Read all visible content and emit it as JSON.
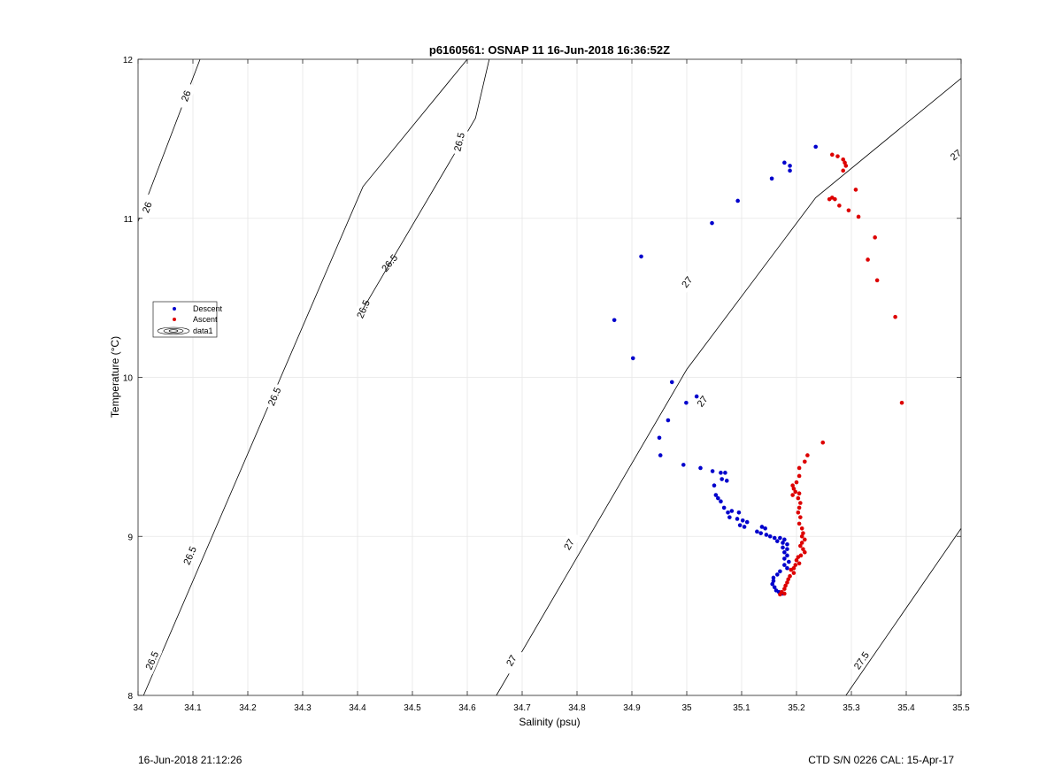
{
  "footer": {
    "left": "16-Jun-2018 21:12:26",
    "right": "CTD S/N 0226  CAL: 15-Apr-17"
  },
  "chart_data": {
    "type": "scatter",
    "title": "p6160561: OSNAP 11 16-Jun-2018 16:36:52Z",
    "xlabel": "Salinity (psu)",
    "ylabel": "Temperature (°C)",
    "xlim": [
      34,
      35.5
    ],
    "ylim": [
      8,
      12
    ],
    "xticks": [
      34,
      34.1,
      34.2,
      34.3,
      34.4,
      34.5,
      34.6,
      34.7,
      34.8,
      34.9,
      35,
      35.1,
      35.2,
      35.3,
      35.4,
      35.5
    ],
    "xtick_labels": [
      "34",
      "34.1",
      "34.2",
      "34.3",
      "34.4",
      "34.5",
      "34.6",
      "34.7",
      "34.8",
      "34.9",
      "35",
      "35.1",
      "35.2",
      "35.3",
      "35.4",
      "35.5"
    ],
    "yticks": [
      8,
      9,
      10,
      11,
      12
    ],
    "ytick_labels": [
      "8",
      "9",
      "10",
      "11",
      "12"
    ],
    "grid": true,
    "legend": {
      "placement": "left",
      "entries": [
        {
          "label": "Descent",
          "color": "#0000cc",
          "marker": "dot"
        },
        {
          "label": "Ascent",
          "color": "#dd0000",
          "marker": "dot"
        },
        {
          "label": "data1",
          "marker": "contour"
        }
      ]
    },
    "contours": [
      {
        "label": "26",
        "points": [
          [
            34.0,
            10.98
          ],
          [
            34.113,
            12.0
          ]
        ],
        "label_positions": [
          [
            34.016,
            11.07
          ],
          [
            34.087,
            11.77
          ]
        ]
      },
      {
        "label": "26.5",
        "points": [
          [
            34.01,
            8.0
          ],
          [
            34.41,
            11.2
          ],
          [
            34.6,
            12.0
          ]
        ],
        "label_positions": [
          [
            34.025,
            8.22
          ],
          [
            34.094,
            8.88
          ],
          [
            34.248,
            9.88
          ],
          [
            34.41,
            10.43
          ],
          [
            34.458,
            10.72
          ]
        ]
      },
      {
        "label": "26.5",
        "points": [
          [
            34.41,
            10.43
          ],
          [
            34.615,
            11.63
          ],
          [
            34.64,
            12.0
          ]
        ],
        "label_positions": [
          [
            34.585,
            11.48
          ]
        ]
      },
      {
        "label": "27",
        "points": [
          [
            34.653,
            8.0
          ],
          [
            35.0,
            10.05
          ],
          [
            35.235,
            11.13
          ],
          [
            35.5,
            11.88
          ]
        ],
        "label_positions": [
          [
            34.68,
            8.22
          ],
          [
            34.785,
            8.95
          ],
          [
            35.028,
            9.85
          ],
          [
            35.0,
            10.6
          ],
          [
            35.49,
            11.4
          ]
        ]
      },
      {
        "label": "27.5",
        "points": [
          [
            35.29,
            8.0
          ],
          [
            35.5,
            9.05
          ]
        ],
        "label_positions": [
          [
            35.318,
            8.22
          ]
        ]
      }
    ],
    "series": [
      {
        "name": "Descent",
        "color": "#0000cc",
        "points": [
          [
            35.235,
            11.45
          ],
          [
            35.178,
            11.35
          ],
          [
            35.188,
            11.33
          ],
          [
            35.188,
            11.3
          ],
          [
            35.155,
            11.25
          ],
          [
            35.093,
            11.11
          ],
          [
            35.046,
            10.97
          ],
          [
            34.917,
            10.76
          ],
          [
            34.868,
            10.36
          ],
          [
            34.902,
            10.12
          ],
          [
            34.973,
            9.97
          ],
          [
            35.018,
            9.88
          ],
          [
            34.999,
            9.84
          ],
          [
            34.966,
            9.73
          ],
          [
            34.95,
            9.62
          ],
          [
            34.952,
            9.51
          ],
          [
            34.994,
            9.45
          ],
          [
            35.025,
            9.43
          ],
          [
            35.047,
            9.41
          ],
          [
            35.062,
            9.4
          ],
          [
            35.07,
            9.4
          ],
          [
            35.064,
            9.36
          ],
          [
            35.073,
            9.35
          ],
          [
            35.05,
            9.32
          ],
          [
            35.053,
            9.26
          ],
          [
            35.057,
            9.24
          ],
          [
            35.062,
            9.22
          ],
          [
            35.068,
            9.18
          ],
          [
            35.075,
            9.15
          ],
          [
            35.082,
            9.16
          ],
          [
            35.095,
            9.15
          ],
          [
            35.078,
            9.12
          ],
          [
            35.092,
            9.11
          ],
          [
            35.102,
            9.1
          ],
          [
            35.11,
            9.09
          ],
          [
            35.097,
            9.07
          ],
          [
            35.105,
            9.06
          ],
          [
            35.137,
            9.06
          ],
          [
            35.143,
            9.05
          ],
          [
            35.128,
            9.03
          ],
          [
            35.135,
            9.02
          ],
          [
            35.145,
            9.01
          ],
          [
            35.152,
            9.0
          ],
          [
            35.16,
            8.99
          ],
          [
            35.17,
            8.99
          ],
          [
            35.178,
            8.98
          ],
          [
            35.165,
            8.97
          ],
          [
            35.175,
            8.96
          ],
          [
            35.183,
            8.95
          ],
          [
            35.175,
            8.93
          ],
          [
            35.183,
            8.92
          ],
          [
            35.178,
            8.9
          ],
          [
            35.183,
            8.88
          ],
          [
            35.178,
            8.86
          ],
          [
            35.186,
            8.84
          ],
          [
            35.178,
            8.82
          ],
          [
            35.183,
            8.8
          ],
          [
            35.17,
            8.78
          ],
          [
            35.165,
            8.76
          ],
          [
            35.158,
            8.74
          ],
          [
            35.158,
            8.72
          ],
          [
            35.156,
            8.7
          ],
          [
            35.16,
            8.68
          ],
          [
            35.163,
            8.66
          ],
          [
            35.168,
            8.65
          ],
          [
            35.175,
            8.64
          ]
        ]
      },
      {
        "name": "Ascent",
        "color": "#dd0000",
        "points": [
          [
            35.265,
            11.4
          ],
          [
            35.275,
            11.39
          ],
          [
            35.285,
            11.37
          ],
          [
            35.288,
            11.35
          ],
          [
            35.29,
            11.33
          ],
          [
            35.285,
            11.3
          ],
          [
            35.308,
            11.18
          ],
          [
            35.265,
            11.13
          ],
          [
            35.27,
            11.12
          ],
          [
            35.26,
            11.12
          ],
          [
            35.278,
            11.08
          ],
          [
            35.295,
            11.05
          ],
          [
            35.313,
            11.01
          ],
          [
            35.343,
            10.88
          ],
          [
            35.33,
            10.74
          ],
          [
            35.347,
            10.61
          ],
          [
            35.38,
            10.38
          ],
          [
            35.392,
            9.84
          ],
          [
            35.248,
            9.59
          ],
          [
            35.22,
            9.51
          ],
          [
            35.215,
            9.47
          ],
          [
            35.205,
            9.43
          ],
          [
            35.205,
            9.38
          ],
          [
            35.2,
            9.34
          ],
          [
            35.193,
            9.32
          ],
          [
            35.195,
            9.3
          ],
          [
            35.198,
            9.28
          ],
          [
            35.205,
            9.27
          ],
          [
            35.193,
            9.26
          ],
          [
            35.203,
            9.24
          ],
          [
            35.207,
            9.21
          ],
          [
            35.205,
            9.18
          ],
          [
            35.203,
            9.15
          ],
          [
            35.207,
            9.12
          ],
          [
            35.205,
            9.08
          ],
          [
            35.21,
            9.05
          ],
          [
            35.212,
            9.02
          ],
          [
            35.21,
            9.0
          ],
          [
            35.215,
            8.98
          ],
          [
            35.21,
            8.96
          ],
          [
            35.207,
            8.94
          ],
          [
            35.212,
            8.92
          ],
          [
            35.215,
            8.9
          ],
          [
            35.208,
            8.88
          ],
          [
            35.203,
            8.87
          ],
          [
            35.2,
            8.85
          ],
          [
            35.205,
            8.83
          ],
          [
            35.198,
            8.82
          ],
          [
            35.195,
            8.8
          ],
          [
            35.19,
            8.79
          ],
          [
            35.195,
            8.77
          ],
          [
            35.188,
            8.75
          ],
          [
            35.185,
            8.73
          ],
          [
            35.183,
            8.71
          ],
          [
            35.18,
            8.69
          ],
          [
            35.178,
            8.67
          ],
          [
            35.173,
            8.65
          ],
          [
            35.178,
            8.64
          ],
          [
            35.17,
            8.635
          ]
        ]
      }
    ]
  }
}
